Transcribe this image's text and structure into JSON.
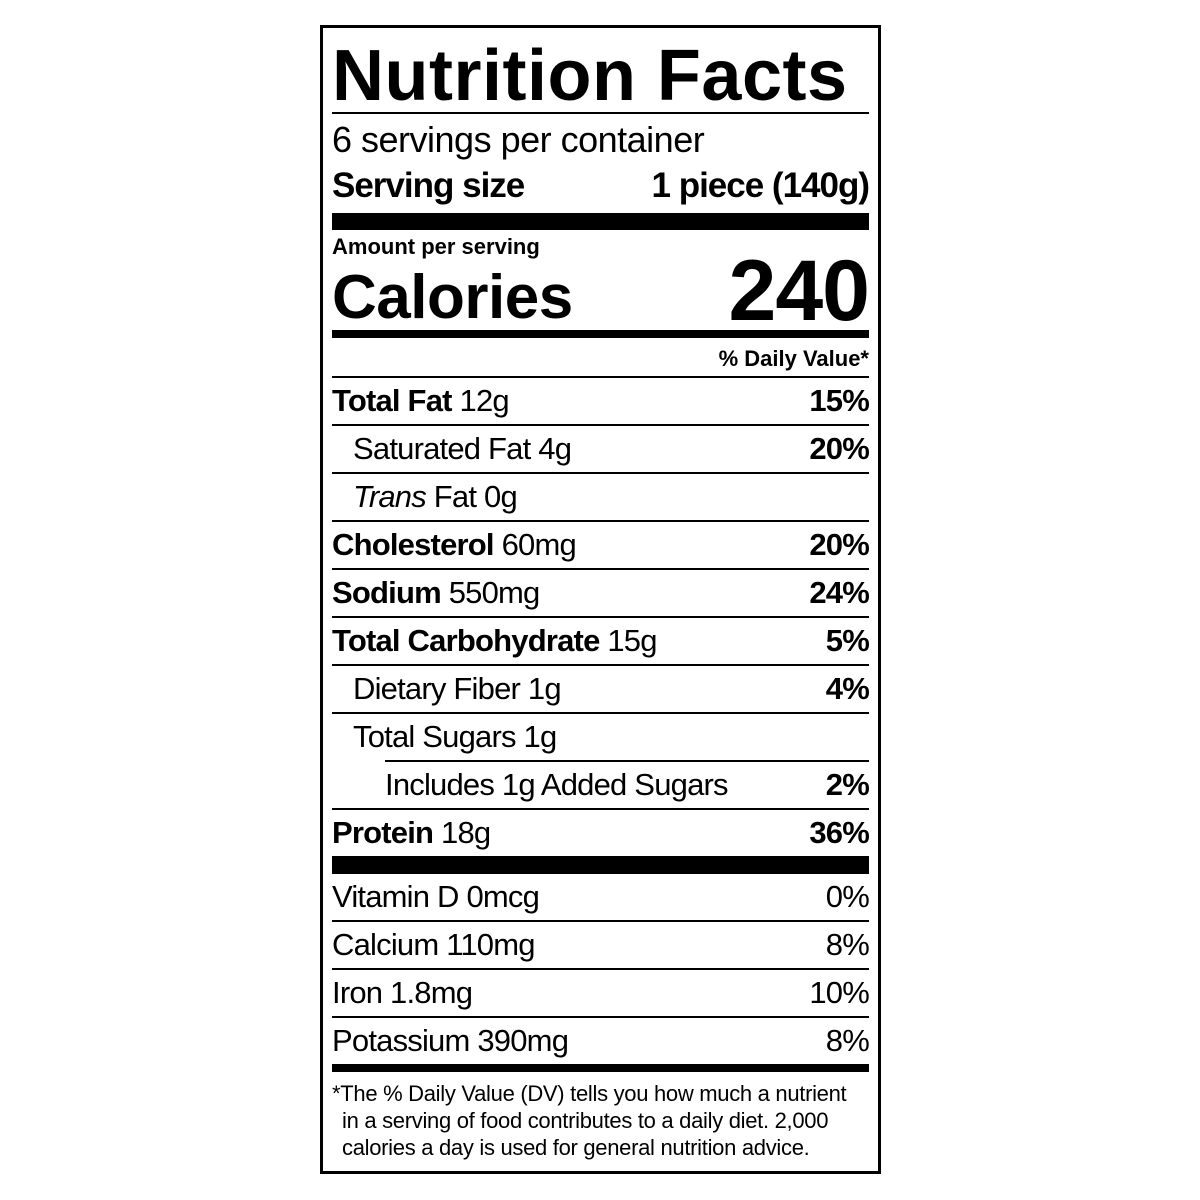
{
  "title": "Nutrition Facts",
  "servings_per_container": "6 servings per container",
  "serving_size": {
    "label": "Serving size",
    "value": "1 piece (140g)"
  },
  "amount_per_serving": "Amount per serving",
  "calories": {
    "label": "Calories",
    "value": "240"
  },
  "daily_value_header": "% Daily Value*",
  "nutrients": [
    {
      "name": "Total Fat",
      "amount": "12g",
      "dv": "15%"
    },
    {
      "name": "Saturated Fat",
      "amount": "4g",
      "dv": "20%"
    },
    {
      "name": "Trans",
      "name_rest": "Fat",
      "amount": "0g",
      "dv": ""
    },
    {
      "name": "Cholesterol",
      "amount": "60mg",
      "dv": "20%"
    },
    {
      "name": "Sodium",
      "amount": "550mg",
      "dv": "24%"
    },
    {
      "name": "Total Carbohydrate",
      "amount": "15g",
      "dv": "5%"
    },
    {
      "name": "Dietary Fiber",
      "amount": "1g",
      "dv": "4%"
    },
    {
      "name": "Total Sugars",
      "amount": "1g",
      "dv": ""
    },
    {
      "name": "Includes 1g Added Sugars",
      "amount": "",
      "dv": "2%"
    },
    {
      "name": "Protein",
      "amount": "18g",
      "dv": "36%"
    }
  ],
  "vitamins": [
    {
      "name": "Vitamin D",
      "amount": "0mcg",
      "dv": "0%"
    },
    {
      "name": "Calcium",
      "amount": "110mg",
      "dv": "8%"
    },
    {
      "name": "Iron",
      "amount": "1.8mg",
      "dv": "10%"
    },
    {
      "name": "Potassium",
      "amount": "390mg",
      "dv": "8%"
    }
  ],
  "footnote": [
    "*The % Daily Value (DV) tells you how much a nutrient",
    "in a serving of food contributes to a daily diet. 2,000",
    "calories a day is used for general nutrition advice."
  ]
}
